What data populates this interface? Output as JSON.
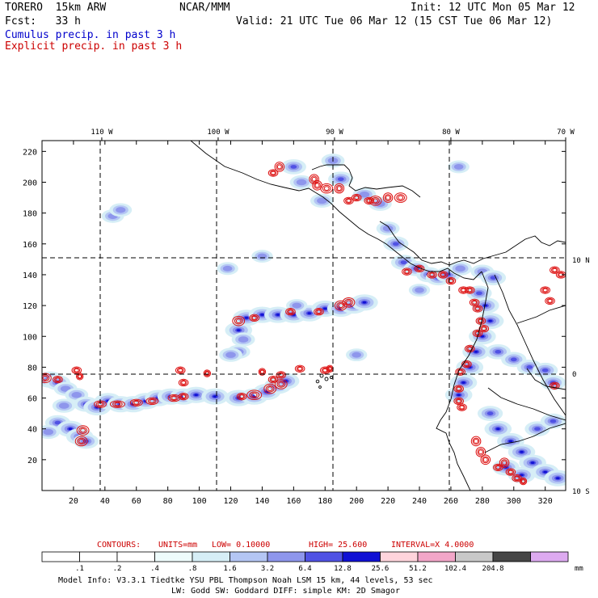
{
  "header": {
    "model": "TORERO  15km ARW",
    "org": "NCAR/MMM",
    "init": "Init: 12 UTC Mon 05 Mar 12",
    "fcst": "Fcst:   33 h",
    "valid": "Valid: 21 UTC Tue 06 Mar 12 (15 CST Tue 06 Mar 12)",
    "field1": "Cumulus precip. in past 3 h",
    "field2": "Explicit precip. in past 3 h"
  },
  "colors": {
    "field1": "#0000cc",
    "field2": "#cc0000",
    "contour": "#dd1111",
    "coast": "#000000"
  },
  "chart_data": {
    "type": "heatmap",
    "title": "Cumulus precip. in past 3 h / Explicit precip. in past 3 h",
    "x_ticks": [
      "20",
      "40",
      "60",
      "80",
      "100",
      "120",
      "140",
      "160",
      "180",
      "200",
      "220",
      "240",
      "260",
      "280",
      "300",
      "320"
    ],
    "y_ticks": [
      "20",
      "40",
      "60",
      "80",
      "100",
      "120",
      "140",
      "160",
      "180",
      "200",
      "220"
    ],
    "xlim": [
      0,
      333
    ],
    "ylim": [
      0,
      227
    ],
    "lon_labels": [
      {
        "text": "110 W",
        "x": 38
      },
      {
        "text": "100 W",
        "x": 112
      },
      {
        "text": "90 W",
        "x": 186
      },
      {
        "text": "80 W",
        "x": 260
      },
      {
        "text": "70 W",
        "x": 333
      }
    ],
    "lat_labels": [
      {
        "text": "10 N",
        "y": 150
      },
      {
        "text": "0",
        "y": 76
      },
      {
        "text": "10 S",
        "y": 0
      }
    ],
    "contours_caption": {
      "label": "CONTOURS:",
      "units": "UNITS=mm",
      "low": "LOW= 0.10000",
      "high": "HIGH=  25.600",
      "interval": "INTERVAL=X  4.0000"
    },
    "colorbar": {
      "levels": [
        ".1",
        ".2",
        ".4",
        ".8",
        "1.6",
        "3.2",
        "6.4",
        "12.8",
        "25.6",
        "51.2",
        "102.4",
        "204.8"
      ],
      "unit": "mm",
      "colors": [
        "#ffffff",
        "#ffffff",
        "#ffffff",
        "#eefcfc",
        "#d6eef6",
        "#b4c6f4",
        "#8e96ec",
        "#5052e4",
        "#1010d4",
        "#ffd4dc",
        "#f2a6c8",
        "#c8c8c8",
        "#464646",
        "#ddaaf0"
      ]
    },
    "precip_cells": [
      [
        5,
        72,
        3.0
      ],
      [
        10,
        70,
        2.5
      ],
      [
        15,
        66,
        2.0
      ],
      [
        22,
        62,
        2.0
      ],
      [
        28,
        56,
        2.5
      ],
      [
        35,
        54,
        3.0
      ],
      [
        42,
        58,
        3.0
      ],
      [
        50,
        56,
        3.0
      ],
      [
        58,
        56,
        3.0
      ],
      [
        66,
        58,
        3.0
      ],
      [
        74,
        60,
        3.0
      ],
      [
        82,
        61,
        3.0
      ],
      [
        90,
        61,
        3.0
      ],
      [
        98,
        62,
        3.0
      ],
      [
        110,
        61,
        3.0
      ],
      [
        125,
        60,
        3.0
      ],
      [
        135,
        61,
        3.0
      ],
      [
        143,
        64,
        3.0
      ],
      [
        150,
        68,
        3.0
      ],
      [
        155,
        71,
        3.0
      ],
      [
        10,
        44,
        2.5
      ],
      [
        18,
        40,
        3.0
      ],
      [
        24,
        35,
        3.0
      ],
      [
        28,
        32,
        2.5
      ],
      [
        14,
        55,
        2.0
      ],
      [
        4,
        38,
        2.0
      ],
      [
        125,
        104,
        3.0
      ],
      [
        130,
        112,
        3.0
      ],
      [
        140,
        114,
        3.0
      ],
      [
        150,
        114,
        3.0
      ],
      [
        160,
        114,
        3.0
      ],
      [
        170,
        115,
        3.0
      ],
      [
        180,
        118,
        3.0
      ],
      [
        190,
        118,
        3.0
      ],
      [
        198,
        120,
        3.0
      ],
      [
        205,
        122,
        3.0
      ],
      [
        125,
        90,
        2.0
      ],
      [
        128,
        98,
        2.0
      ],
      [
        120,
        88,
        2.0
      ],
      [
        230,
        148,
        2.5
      ],
      [
        238,
        144,
        2.5
      ],
      [
        246,
        140,
        2.5
      ],
      [
        252,
        138,
        2.5
      ],
      [
        258,
        140,
        2.5
      ],
      [
        266,
        144,
        2.0
      ],
      [
        280,
        142,
        2.0
      ],
      [
        287,
        138,
        2.5
      ],
      [
        278,
        128,
        2.5
      ],
      [
        282,
        120,
        3.0
      ],
      [
        285,
        110,
        3.0
      ],
      [
        280,
        100,
        3.0
      ],
      [
        276,
        90,
        3.0
      ],
      [
        272,
        80,
        3.0
      ],
      [
        268,
        70,
        3.0
      ],
      [
        265,
        62,
        3.0
      ],
      [
        290,
        90,
        2.5
      ],
      [
        300,
        85,
        2.5
      ],
      [
        310,
        80,
        2.5
      ],
      [
        320,
        78,
        2.5
      ],
      [
        325,
        70,
        2.5
      ],
      [
        285,
        50,
        2.5
      ],
      [
        290,
        40,
        3.0
      ],
      [
        298,
        32,
        3.0
      ],
      [
        305,
        25,
        3.0
      ],
      [
        312,
        18,
        3.0
      ],
      [
        320,
        12,
        3.0
      ],
      [
        328,
        8,
        3.0
      ],
      [
        295,
        15,
        3.0
      ],
      [
        305,
        10,
        3.0
      ],
      [
        315,
        40,
        2.5
      ],
      [
        325,
        45,
        2.5
      ],
      [
        160,
        210,
        2.5
      ],
      [
        165,
        200,
        2.0
      ],
      [
        178,
        188,
        2.0
      ],
      [
        190,
        202,
        2.5
      ],
      [
        185,
        214,
        2.0
      ],
      [
        205,
        192,
        2.0
      ],
      [
        215,
        186,
        2.0
      ],
      [
        220,
        170,
        2.0
      ],
      [
        225,
        160,
        2.5
      ],
      [
        45,
        178,
        1.8
      ],
      [
        50,
        182,
        1.8
      ],
      [
        118,
        144,
        1.5
      ],
      [
        140,
        152,
        1.5
      ],
      [
        162,
        120,
        1.5
      ],
      [
        200,
        88,
        1.5
      ],
      [
        265,
        210,
        1.5
      ],
      [
        240,
        130,
        1.5
      ]
    ],
    "explicit_contours": [
      [
        2,
        73,
        4,
        3
      ],
      [
        10,
        72,
        3,
        2
      ],
      [
        22,
        78,
        3,
        2
      ],
      [
        24,
        74,
        2,
        2
      ],
      [
        26,
        39,
        4,
        3
      ],
      [
        25,
        32,
        4,
        3
      ],
      [
        37,
        56,
        4,
        2
      ],
      [
        48,
        56,
        5,
        2
      ],
      [
        60,
        57,
        4,
        2
      ],
      [
        70,
        58,
        4,
        2
      ],
      [
        84,
        60,
        4,
        2
      ],
      [
        90,
        61,
        3,
        2
      ],
      [
        127,
        61,
        3,
        2
      ],
      [
        135,
        62,
        5,
        3
      ],
      [
        145,
        66,
        4,
        3
      ],
      [
        152,
        69,
        4,
        3
      ],
      [
        125,
        110,
        4,
        3
      ],
      [
        135,
        112,
        3,
        2
      ],
      [
        158,
        116,
        3,
        2
      ],
      [
        176,
        116,
        3,
        2
      ],
      [
        190,
        120,
        4,
        3
      ],
      [
        195,
        122,
        4,
        3
      ],
      [
        140,
        77,
        2,
        2
      ],
      [
        152,
        75,
        3,
        2
      ],
      [
        164,
        79,
        3,
        2
      ],
      [
        180,
        78,
        3,
        2
      ],
      [
        183,
        79,
        2,
        2
      ],
      [
        90,
        70,
        3,
        2
      ],
      [
        88,
        78,
        3,
        2
      ],
      [
        105,
        76,
        2,
        2
      ],
      [
        147,
        72,
        3,
        2
      ],
      [
        147,
        206,
        3,
        2
      ],
      [
        151,
        210,
        3,
        3
      ],
      [
        173,
        202,
        3,
        3
      ],
      [
        175,
        198,
        3,
        3
      ],
      [
        181,
        196,
        4,
        3
      ],
      [
        189,
        196,
        3,
        3
      ],
      [
        195,
        188,
        3,
        2
      ],
      [
        200,
        190,
        3,
        2
      ],
      [
        208,
        188,
        3,
        2
      ],
      [
        212,
        188,
        4,
        3
      ],
      [
        220,
        190,
        3,
        3
      ],
      [
        228,
        190,
        4,
        3
      ],
      [
        232,
        142,
        3,
        2
      ],
      [
        240,
        144,
        3,
        2
      ],
      [
        248,
        140,
        3,
        2
      ],
      [
        255,
        140,
        3,
        2
      ],
      [
        260,
        136,
        3,
        2
      ],
      [
        268,
        130,
        3,
        2
      ],
      [
        272,
        130,
        3,
        2
      ],
      [
        275,
        122,
        3,
        2
      ],
      [
        277,
        118,
        3,
        2
      ],
      [
        279,
        110,
        3,
        2
      ],
      [
        281,
        105,
        3,
        2
      ],
      [
        277,
        102,
        3,
        2
      ],
      [
        272,
        92,
        3,
        2
      ],
      [
        270,
        82,
        3,
        2
      ],
      [
        266,
        77,
        3,
        2
      ],
      [
        265,
        66,
        3,
        2
      ],
      [
        265,
        58,
        3,
        2
      ],
      [
        267,
        54,
        3,
        2
      ],
      [
        276,
        32,
        3,
        3
      ],
      [
        279,
        25,
        3,
        3
      ],
      [
        282,
        20,
        3,
        3
      ],
      [
        290,
        15,
        3,
        2
      ],
      [
        294,
        18,
        3,
        3
      ],
      [
        298,
        12,
        3,
        2
      ],
      [
        302,
        8,
        3,
        2
      ],
      [
        306,
        6,
        2,
        2
      ],
      [
        326,
        68,
        3,
        2
      ],
      [
        330,
        140,
        3,
        2
      ],
      [
        326,
        143,
        3,
        2
      ],
      [
        320,
        130,
        3,
        2
      ],
      [
        323,
        123,
        3,
        2
      ]
    ],
    "footer": {
      "line1": "Model Info: V3.3.1    Tiedtke YSU PBL  Thompson      Noah LSM  15 km,    44 levels,    53 sec",
      "line2": "LW: Godd SW: Goddard DIFF: simple KM: 2D Smagor"
    }
  }
}
